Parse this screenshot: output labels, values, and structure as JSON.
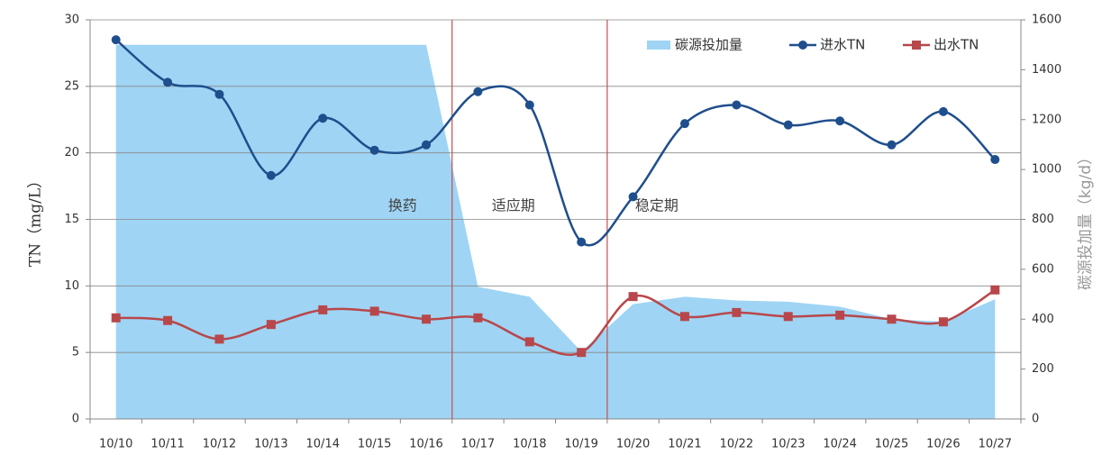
{
  "chart_data": {
    "type": "line",
    "categories": [
      "10/10",
      "10/11",
      "10/12",
      "10/13",
      "10/14",
      "10/15",
      "10/16",
      "10/17",
      "10/18",
      "10/19",
      "10/20",
      "10/21",
      "10/22",
      "10/23",
      "10/24",
      "10/25",
      "10/26",
      "10/27"
    ],
    "series": [
      {
        "name": "碳源投加量",
        "kind": "area",
        "axis": "y2",
        "color": "#9fd4f4",
        "values": [
          1500,
          1500,
          1500,
          1500,
          1500,
          1500,
          1500,
          530,
          490,
          270,
          460,
          490,
          475,
          470,
          450,
          400,
          390,
          480
        ]
      },
      {
        "name": "进水TN",
        "color": "#1f4e8c",
        "values": [
          28.5,
          25.3,
          24.4,
          18.3,
          22.6,
          20.2,
          20.6,
          24.6,
          23.6,
          13.3,
          16.7,
          22.2,
          23.6,
          22.1,
          22.4,
          20.6,
          23.1,
          19.5
        ]
      },
      {
        "name": "出水TN",
        "color": "#b8474b",
        "values": [
          7.6,
          7.4,
          6.0,
          7.1,
          8.2,
          8.1,
          7.5,
          7.6,
          5.8,
          5.0,
          9.2,
          7.7,
          8.0,
          7.7,
          7.8,
          7.5,
          7.3,
          9.7
        ]
      }
    ],
    "ylabel": "TN（mg/L）",
    "y2label": "碳源投加量（kg/d）",
    "ylim": [
      0,
      30
    ],
    "yticks": [
      0,
      5,
      10,
      15,
      20,
      25,
      30
    ],
    "y2lim": [
      0,
      1600
    ],
    "y2ticks": [
      0,
      200,
      400,
      600,
      800,
      1000,
      1200,
      1400,
      1600
    ],
    "annotations": [
      "换药",
      "适应期",
      "稳定期"
    ],
    "grid": true,
    "legend": "top-right"
  }
}
